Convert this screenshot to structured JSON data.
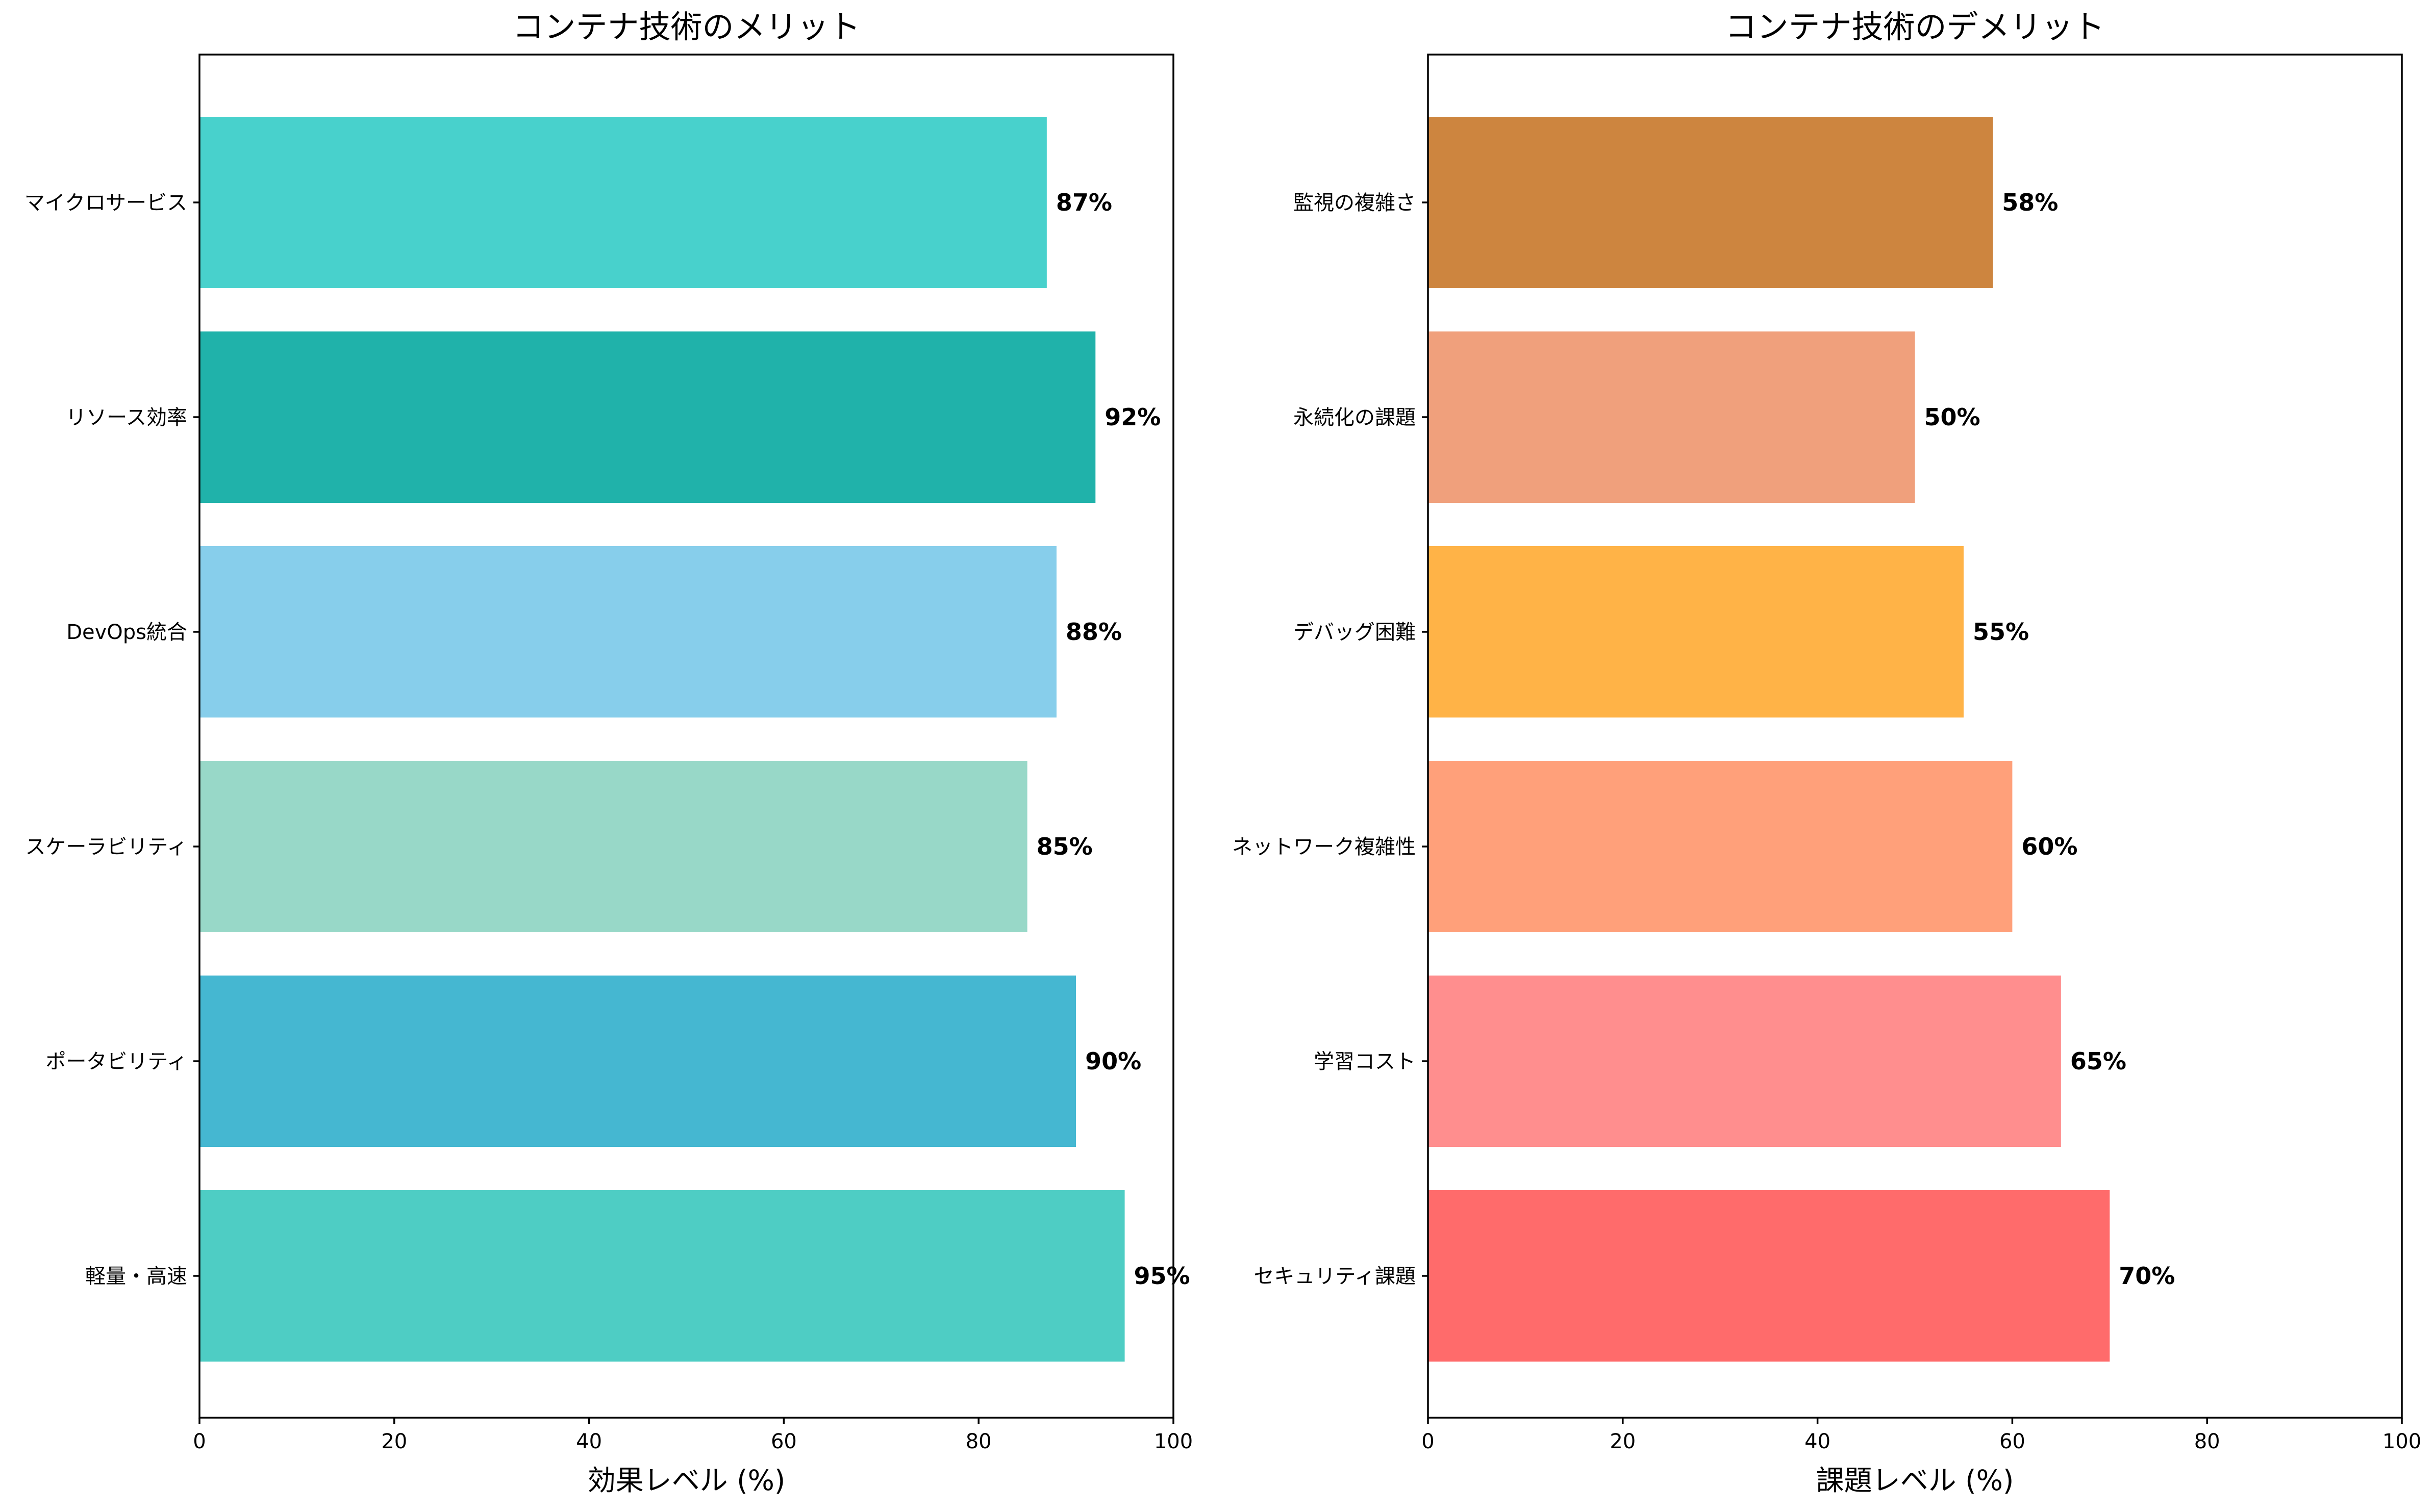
{
  "chart_data": [
    {
      "type": "bar",
      "orientation": "horizontal",
      "title": "コンテナ技術のメリット",
      "xlabel": "効果レベル (%)",
      "ylabel": "",
      "xlim": [
        0,
        100
      ],
      "xticks": [
        "0",
        "20",
        "40",
        "60",
        "80",
        "100"
      ],
      "grid": false,
      "categories": [
        "軽量・高速",
        "ポータビリティ",
        "スケーラビリティ",
        "DevOps統合",
        "リソース効率",
        "マイクロサービス"
      ],
      "values": [
        95,
        90,
        85,
        88,
        92,
        87
      ],
      "value_labels": [
        "95%",
        "90%",
        "85%",
        "88%",
        "92%",
        "87%"
      ],
      "colors": [
        "#4ECDC4",
        "#45B7D1",
        "#98D8C8",
        "#87CEEB",
        "#20B2AA",
        "#48D1CC"
      ]
    },
    {
      "type": "bar",
      "orientation": "horizontal",
      "title": "コンテナ技術のデメリット",
      "xlabel": "課題レベル (%)",
      "ylabel": "",
      "xlim": [
        0,
        100
      ],
      "xticks": [
        "0",
        "20",
        "40",
        "60",
        "80",
        "100"
      ],
      "grid": false,
      "categories": [
        "セキュリティ課題",
        "学習コスト",
        "ネットワーク複雑性",
        "デバッグ困難",
        "永続化の課題",
        "監視の複雑さ"
      ],
      "values": [
        70,
        65,
        60,
        55,
        50,
        58
      ],
      "value_labels": [
        "70%",
        "65%",
        "60%",
        "55%",
        "50%",
        "58%"
      ],
      "colors": [
        "#FF6B6B",
        "#FF8E8E",
        "#FFA07A",
        "#FFB347",
        "#F0A07C",
        "#CD853F"
      ]
    }
  ]
}
